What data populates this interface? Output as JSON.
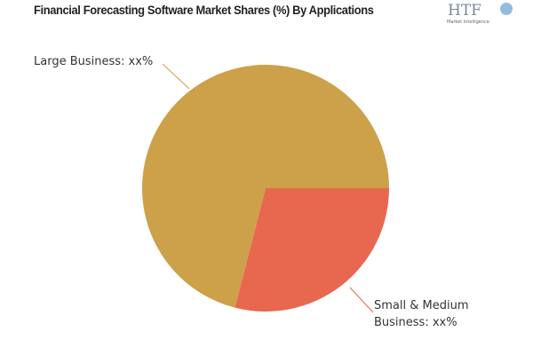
{
  "chart_data": {
    "type": "pie",
    "title": "Financial Forecasting Software Market Shares (%) By Applications",
    "categories": [
      "Small & Medium Business",
      "Large Business"
    ],
    "values": [
      29,
      71
    ],
    "value_labels": [
      "Small & Medium Business: xx%",
      "Large Business: xx%"
    ],
    "colors": [
      "#e8684f",
      "#cca14a"
    ]
  },
  "logo": {
    "text": "HTF",
    "subtext": "Market Intelligence"
  }
}
